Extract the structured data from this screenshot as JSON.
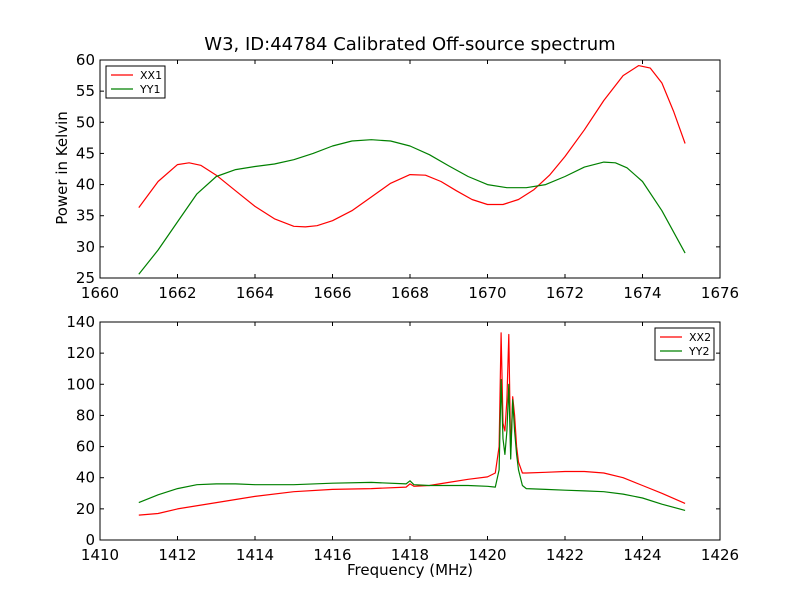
{
  "chart_data": [
    {
      "type": "line",
      "title": "W3, ID:44784 Calibrated Off-source spectrum",
      "xlabel": "",
      "ylabel": "Power in Kelvin",
      "xlim": [
        1660,
        1676
      ],
      "ylim": [
        25,
        60
      ],
      "xticks": [
        1660,
        1662,
        1664,
        1666,
        1668,
        1670,
        1672,
        1674,
        1676
      ],
      "yticks": [
        25,
        30,
        35,
        40,
        45,
        50,
        55,
        60
      ],
      "legend_position": "top-left",
      "grid": false,
      "series": [
        {
          "name": "XX1",
          "color": "#ff0000",
          "x": [
            1661.0,
            1661.5,
            1662.0,
            1662.3,
            1662.6,
            1663.0,
            1663.5,
            1664.0,
            1664.5,
            1665.0,
            1665.3,
            1665.6,
            1666.0,
            1666.5,
            1667.0,
            1667.5,
            1668.0,
            1668.4,
            1668.8,
            1669.2,
            1669.6,
            1670.0,
            1670.4,
            1670.8,
            1671.2,
            1671.6,
            1672.0,
            1672.5,
            1673.0,
            1673.5,
            1673.9,
            1674.2,
            1674.5,
            1674.8,
            1675.1
          ],
          "values": [
            36.3,
            40.5,
            43.2,
            43.5,
            43.1,
            41.5,
            39.0,
            36.5,
            34.5,
            33.3,
            33.2,
            33.4,
            34.2,
            35.8,
            38.0,
            40.2,
            41.6,
            41.5,
            40.5,
            39.0,
            37.6,
            36.8,
            36.8,
            37.6,
            39.2,
            41.5,
            44.5,
            48.8,
            53.5,
            57.5,
            59.1,
            58.7,
            56.3,
            51.8,
            46.6
          ]
        },
        {
          "name": "YY1",
          "color": "#008000",
          "x": [
            1661.0,
            1661.5,
            1662.0,
            1662.5,
            1663.0,
            1663.5,
            1664.0,
            1664.5,
            1665.0,
            1665.5,
            1666.0,
            1666.5,
            1667.0,
            1667.5,
            1668.0,
            1668.5,
            1669.0,
            1669.5,
            1670.0,
            1670.5,
            1671.0,
            1671.5,
            1672.0,
            1672.5,
            1673.0,
            1673.3,
            1673.6,
            1674.0,
            1674.5,
            1675.1
          ],
          "values": [
            25.6,
            29.5,
            34.0,
            38.5,
            41.3,
            42.4,
            42.9,
            43.3,
            44.0,
            45.0,
            46.2,
            47.0,
            47.2,
            47.0,
            46.2,
            44.8,
            43.0,
            41.3,
            40.0,
            39.5,
            39.5,
            40.0,
            41.3,
            42.8,
            43.6,
            43.5,
            42.7,
            40.5,
            35.8,
            29.0
          ]
        }
      ]
    },
    {
      "type": "line",
      "title": "",
      "xlabel": "Frequency (MHz)",
      "ylabel": "",
      "xlim": [
        1410,
        1426
      ],
      "ylim": [
        0,
        140
      ],
      "xticks": [
        1410,
        1412,
        1414,
        1416,
        1418,
        1420,
        1422,
        1424,
        1426
      ],
      "yticks": [
        0,
        20,
        40,
        60,
        80,
        100,
        120,
        140
      ],
      "legend_position": "top-right",
      "grid": false,
      "series": [
        {
          "name": "XX2",
          "color": "#ff0000",
          "x": [
            1411.0,
            1411.5,
            1412.0,
            1413.0,
            1414.0,
            1415.0,
            1416.0,
            1417.0,
            1417.9,
            1418.0,
            1418.1,
            1418.5,
            1419.0,
            1419.5,
            1420.0,
            1420.2,
            1420.3,
            1420.35,
            1420.4,
            1420.45,
            1420.5,
            1420.55,
            1420.6,
            1420.65,
            1420.7,
            1420.75,
            1420.8,
            1420.9,
            1421.0,
            1421.5,
            1422.0,
            1422.5,
            1423.0,
            1423.5,
            1424.0,
            1424.5,
            1425.1
          ],
          "values": [
            16,
            17,
            20,
            24,
            28,
            31,
            32.5,
            33,
            34,
            36,
            34.5,
            35,
            37,
            39,
            40.5,
            43,
            60,
            133,
            75,
            70,
            90,
            132,
            55,
            92,
            80,
            60,
            50,
            43,
            43,
            43.5,
            44,
            44,
            43,
            40,
            35,
            30,
            23.5
          ]
        },
        {
          "name": "YY2",
          "color": "#008000",
          "x": [
            1411.0,
            1411.5,
            1412.0,
            1412.5,
            1413.0,
            1413.5,
            1414.0,
            1415.0,
            1416.0,
            1417.0,
            1417.9,
            1418.0,
            1418.1,
            1418.5,
            1419.0,
            1419.5,
            1420.0,
            1420.2,
            1420.3,
            1420.35,
            1420.4,
            1420.45,
            1420.5,
            1420.55,
            1420.6,
            1420.65,
            1420.7,
            1420.75,
            1420.8,
            1420.9,
            1421.0,
            1421.5,
            1422.0,
            1422.5,
            1423.0,
            1423.5,
            1424.0,
            1424.5,
            1425.1
          ],
          "values": [
            24,
            29,
            33,
            35.5,
            36,
            36,
            35.5,
            35.5,
            36.5,
            37,
            36,
            38,
            35.5,
            35,
            35,
            35,
            34.5,
            34,
            45,
            103,
            65,
            55,
            70,
            100,
            52,
            90,
            70,
            55,
            45,
            35,
            33,
            32.5,
            32,
            31.5,
            31,
            29.5,
            27,
            23,
            19
          ]
        }
      ]
    }
  ]
}
